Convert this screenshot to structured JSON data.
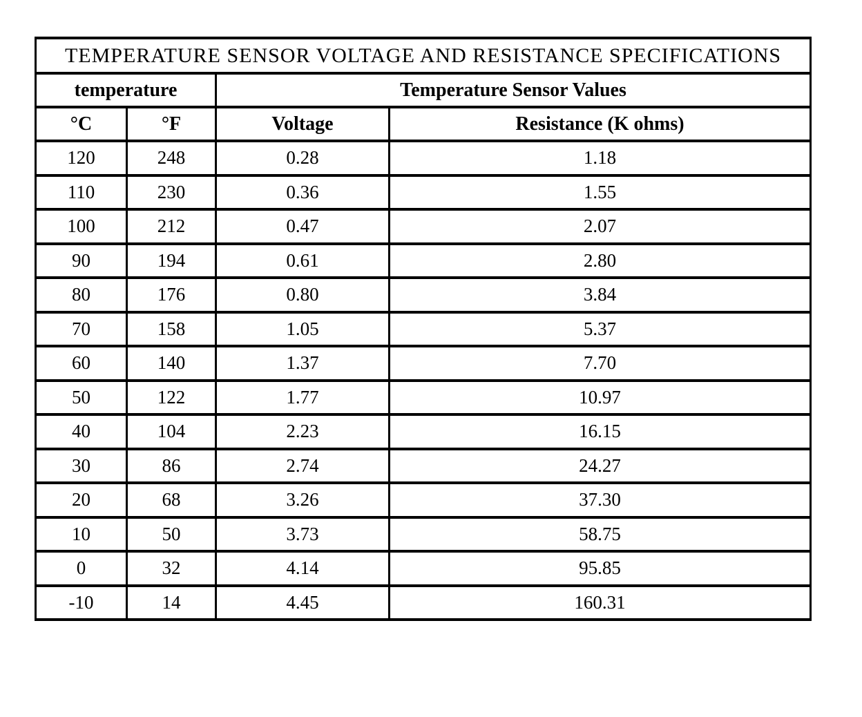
{
  "table": {
    "title": "TEMPERATURE SENSOR VOLTAGE AND RESISTANCE SPECIFICATIONS",
    "group_headers": {
      "temperature": "temperature",
      "sensor_values": "Temperature Sensor Values"
    },
    "column_headers": {
      "celsius": "°C",
      "fahrenheit": "°F",
      "voltage": "Voltage",
      "resistance": "Resistance (K ohms)"
    },
    "rows": [
      {
        "celsius": "120",
        "fahrenheit": "248",
        "voltage": "0.28",
        "resistance": "1.18"
      },
      {
        "celsius": "110",
        "fahrenheit": "230",
        "voltage": "0.36",
        "resistance": "1.55"
      },
      {
        "celsius": "100",
        "fahrenheit": "212",
        "voltage": "0.47",
        "resistance": "2.07"
      },
      {
        "celsius": "90",
        "fahrenheit": "194",
        "voltage": "0.61",
        "resistance": "2.80"
      },
      {
        "celsius": "80",
        "fahrenheit": "176",
        "voltage": "0.80",
        "resistance": "3.84"
      },
      {
        "celsius": "70",
        "fahrenheit": "158",
        "voltage": "1.05",
        "resistance": "5.37"
      },
      {
        "celsius": "60",
        "fahrenheit": "140",
        "voltage": "1.37",
        "resistance": "7.70"
      },
      {
        "celsius": "50",
        "fahrenheit": "122",
        "voltage": "1.77",
        "resistance": "10.97"
      },
      {
        "celsius": "40",
        "fahrenheit": "104",
        "voltage": "2.23",
        "resistance": "16.15"
      },
      {
        "celsius": "30",
        "fahrenheit": "86",
        "voltage": "2.74",
        "resistance": "24.27"
      },
      {
        "celsius": "20",
        "fahrenheit": "68",
        "voltage": "3.26",
        "resistance": "37.30"
      },
      {
        "celsius": "10",
        "fahrenheit": "50",
        "voltage": "3.73",
        "resistance": "58.75"
      },
      {
        "celsius": "0",
        "fahrenheit": "32",
        "voltage": "4.14",
        "resistance": "95.85"
      },
      {
        "celsius": "-10",
        "fahrenheit": "14",
        "voltage": "4.45",
        "resistance": "160.31"
      }
    ]
  },
  "colors": {
    "background": "#ffffff",
    "border": "#000000",
    "text": "#000000"
  }
}
